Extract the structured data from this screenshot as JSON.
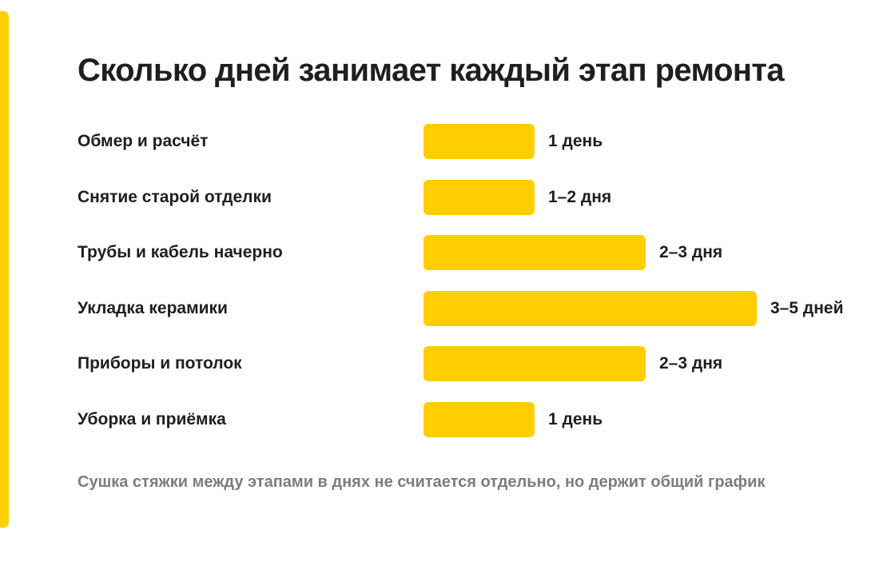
{
  "colors": {
    "accent": "#ffd000",
    "bar": "#ffce00",
    "text": "#1f1f1f",
    "muted": "#7d7d7d"
  },
  "chart_data": {
    "type": "bar",
    "orientation": "horizontal",
    "title": "Сколько дней занимает каждый этап ремонта",
    "categories": [
      "Обмер и расчёт",
      "Снятие старой отделки",
      "Трубы и кабель начерно",
      "Укладка керамики",
      "Приборы и потолок",
      "Уборка и приёмка"
    ],
    "values": [
      1,
      1,
      2,
      3,
      2,
      1
    ],
    "data_labels": [
      "1 день",
      "1–2 дня",
      "2–3 дня",
      "3–5 дней",
      "2–3 дня",
      "1 день"
    ],
    "xlim": [
      0,
      3
    ],
    "grid": false,
    "footnote": "Сушка стяжки между этапами в днях не считается отдельно, но держит общий график"
  }
}
